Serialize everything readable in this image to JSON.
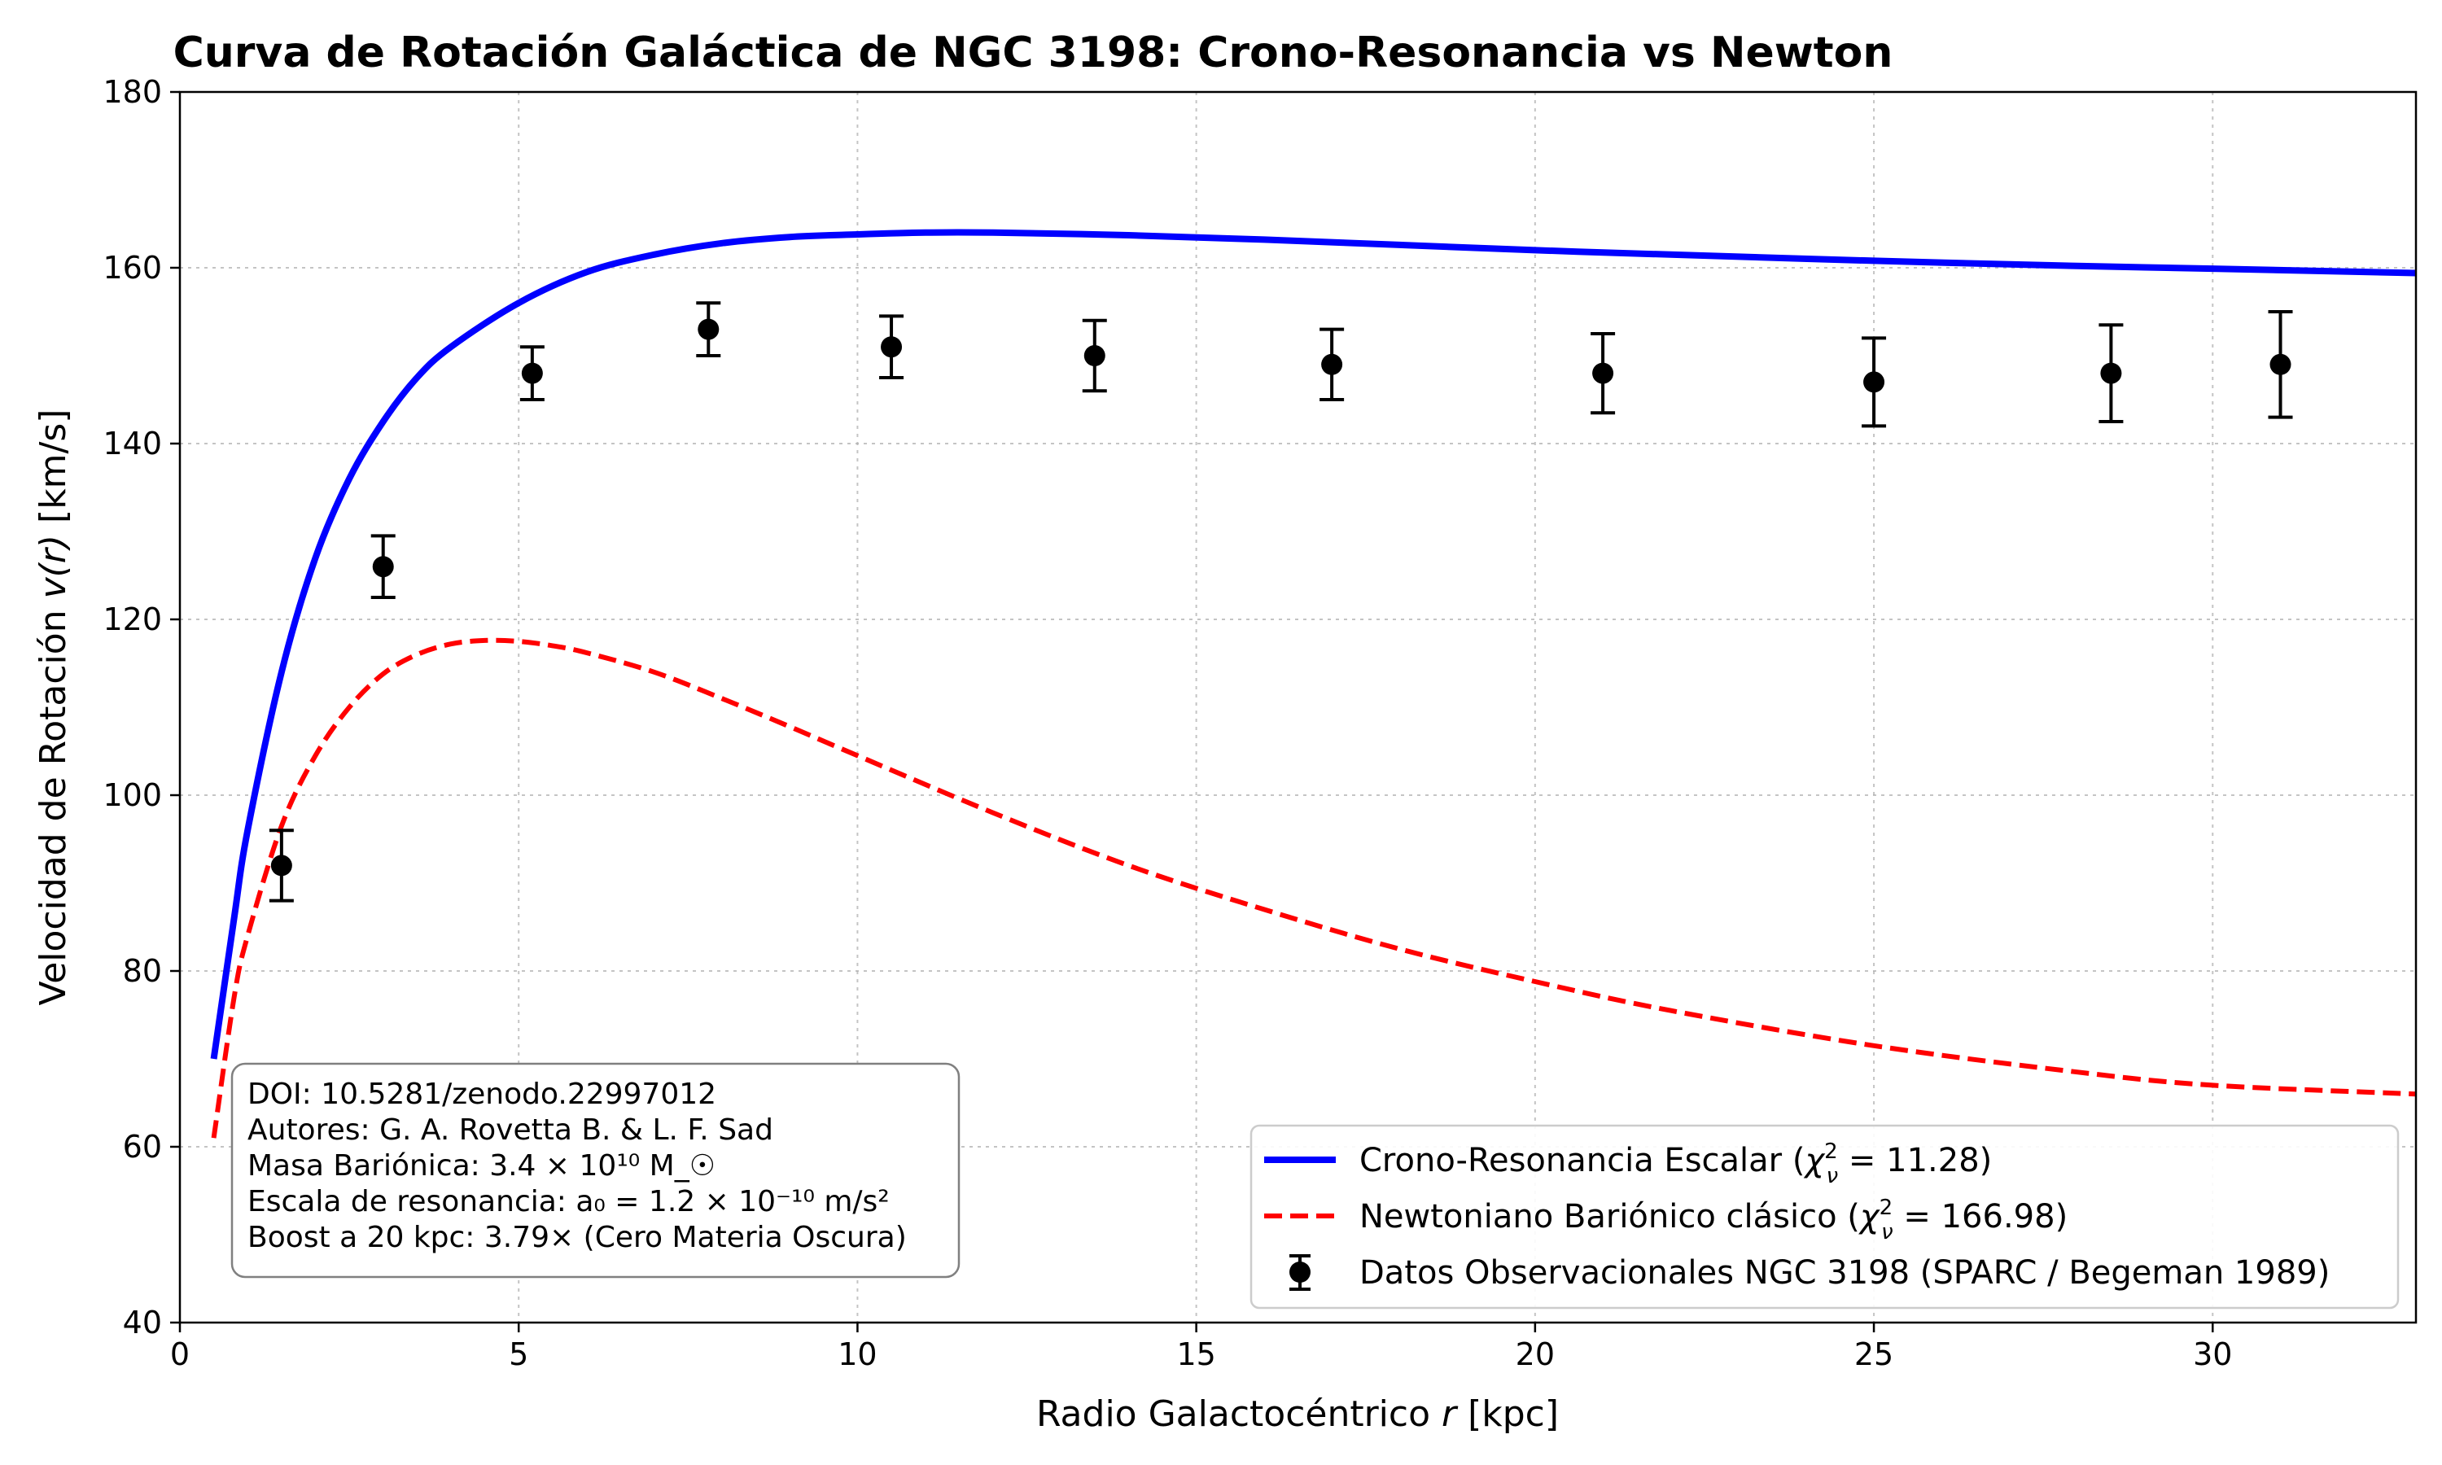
{
  "chart_data": {
    "type": "line",
    "title": "Curva de Rotación Galáctica de NGC 3198: Crono-Resonancia vs Newton",
    "xlabel_text": "Radio Galactocéntrico ",
    "xlabel_var": "r",
    "xlabel_unit": " [kpc]",
    "ylabel_text": "Velocidad de Rotación ",
    "ylabel_var": "v(r)",
    "ylabel_unit": " [km/s]",
    "xlim": [
      0,
      33
    ],
    "ylim": [
      40,
      180
    ],
    "xticks": [
      0,
      5,
      10,
      15,
      20,
      25,
      30
    ],
    "yticks": [
      40,
      60,
      80,
      100,
      120,
      140,
      160,
      180
    ],
    "grid": true,
    "legend_position": "lower-right",
    "colors": {
      "crono": "#0000ff",
      "newton": "#ff0000",
      "data": "#000000"
    },
    "series": [
      {
        "name": "Crono-Resonancia Escalar (χ²ᵥ = 11.28)",
        "style": "solid",
        "x": [
          0.5,
          0.8,
          1.0,
          1.5,
          2.0,
          2.5,
          3.0,
          3.5,
          4.0,
          5.0,
          6.0,
          7.0,
          8.0,
          9.0,
          10.0,
          11.0,
          12.0,
          14.0,
          16.0,
          18.0,
          20.0,
          22.0,
          25.0,
          28.0,
          30.0,
          33.0
        ],
        "y": [
          70,
          86,
          96,
          114,
          127,
          136,
          142.5,
          147.5,
          151,
          156,
          159.5,
          161.5,
          162.8,
          163.5,
          163.8,
          164,
          164,
          163.7,
          163.2,
          162.6,
          162,
          161.5,
          160.8,
          160.2,
          159.9,
          159.4
        ]
      },
      {
        "name": "Newtoniano Bariónico clásico (χ²ᵥ = 166.98)",
        "style": "dashed",
        "x": [
          0.5,
          0.8,
          1.0,
          1.5,
          2.0,
          2.5,
          3.0,
          3.5,
          4.0,
          4.5,
          5.0,
          5.5,
          6.0,
          7.0,
          8.0,
          9.0,
          10.0,
          12.0,
          14.0,
          16.0,
          18.0,
          20.0,
          22.0,
          25.0,
          28.0,
          30.0,
          33.0
        ],
        "y": [
          61,
          77,
          84,
          96.5,
          104.5,
          110,
          113.8,
          116,
          117.2,
          117.6,
          117.5,
          117,
          116.2,
          114,
          111,
          107.8,
          104.5,
          98,
          92,
          87,
          82.5,
          78.8,
          75.5,
          71.5,
          68.5,
          67,
          66
        ]
      },
      {
        "name": "Datos Observacionales NGC 3198 (SPARC / Begeman 1989)",
        "style": "errorbar",
        "x": [
          1.5,
          3.0,
          5.2,
          7.8,
          10.5,
          13.5,
          17.0,
          21.0,
          25.0,
          28.5,
          31.0
        ],
        "y": [
          92,
          126,
          148,
          153,
          151,
          150,
          149,
          148,
          147,
          148,
          149
        ],
        "err": [
          4,
          3.5,
          3,
          3,
          3.5,
          4,
          4,
          4.5,
          5,
          5.5,
          6
        ]
      }
    ],
    "legend": {
      "crono_text": "Crono-Resonancia Escalar (",
      "crono_chi": "χ",
      "crono_sup": "2",
      "crono_sub": "ν",
      "crono_val": " = 11.28)",
      "newton_text": "Newtoniano Bariónico clásico (",
      "newton_chi": "χ",
      "newton_sup": "2",
      "newton_sub": "ν",
      "newton_val": " = 166.98)",
      "data_text": "Datos Observacionales NGC 3198 (SPARC / Begeman 1989)"
    },
    "annotation": [
      "DOI: 10.5281/zenodo.22997012",
      "Autores: G. A. Rovetta B. & L. F. Sad",
      "Masa Bariónica: 3.4 × 10¹⁰ M_☉",
      "Escala de resonancia: a₀ = 1.2 × 10⁻¹⁰ m/s²",
      "Boost a 20 kpc: 3.79× (Cero Materia Oscura)"
    ]
  }
}
